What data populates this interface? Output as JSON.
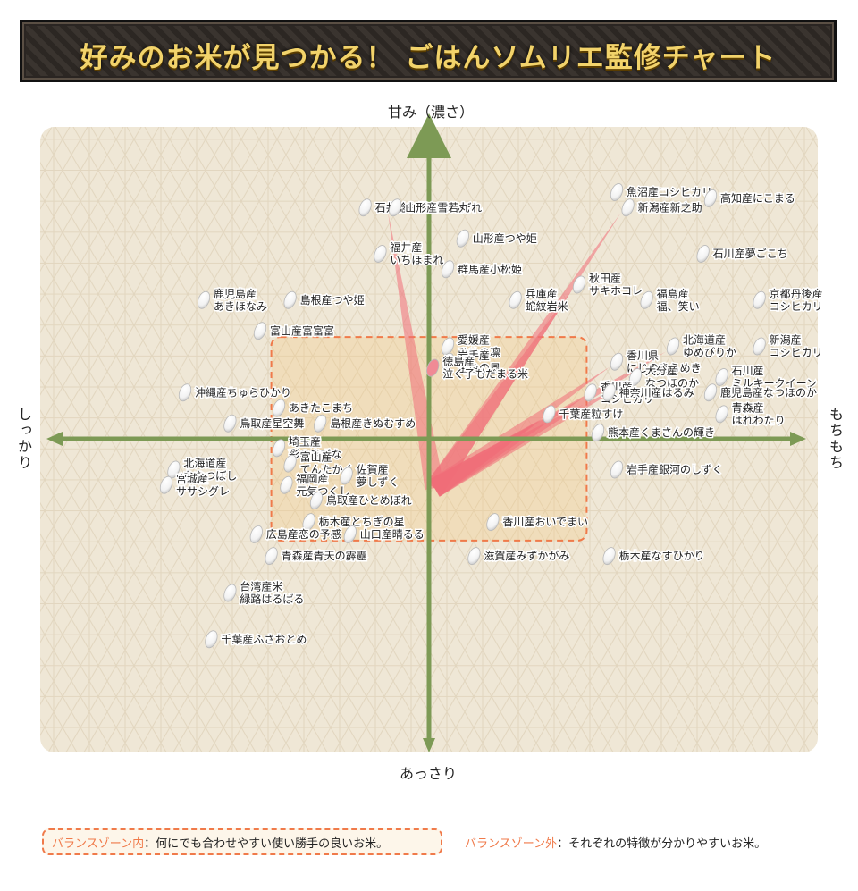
{
  "title": "好みのお米が見つかる！ ごはんソムリエ監修チャート",
  "axes": {
    "top": "甘み（濃さ）",
    "bottom": "あっさり",
    "left": "しっかり",
    "right": "もちもち"
  },
  "legend": {
    "inside_label": "バランスゾーン内",
    "inside_text": "：何にでも合わせやすい使い勝手の良いお米。",
    "outside_label": "バランスゾーン外",
    "outside_text": "：それぞれの特徴が分かりやすいお米。"
  },
  "chart_data": {
    "type": "scatter",
    "title": "好みのお米が見つかる！ ごはんソムリエ監修チャート",
    "x_axis": {
      "negative": "しっかり",
      "positive": "もちもち",
      "xlim": [
        -10,
        10
      ]
    },
    "y_axis": {
      "negative": "あっさり",
      "positive": "甘み（濃さ）",
      "ylim": [
        -10,
        10
      ]
    },
    "balance_zone": {
      "x": [
        -4.2,
        4.2
      ],
      "y": [
        -3.3,
        3.3
      ]
    },
    "highlight": {
      "name": "徳島産 泣く子もだまる米",
      "x": 0.1,
      "y": 2.3
    },
    "points": [
      {
        "name": "魚沼産コシヒカリ",
        "x": 5.0,
        "y": 8.0
      },
      {
        "name": "新潟産新之助",
        "x": 5.3,
        "y": 7.5
      },
      {
        "name": "高知産にこまる",
        "x": 7.5,
        "y": 7.8
      },
      {
        "name": "石井稔有機ひとめぼれ",
        "x": -1.7,
        "y": 7.5
      },
      {
        "name": "山形産雪若丸",
        "x": -0.9,
        "y": 7.5
      },
      {
        "name": "山形産つや姫",
        "x": 0.9,
        "y": 6.5
      },
      {
        "name": "石川産夢ごこち",
        "x": 7.3,
        "y": 6.0
      },
      {
        "name": "福井産 いちほまれ",
        "x": -1.3,
        "y": 6.0
      },
      {
        "name": "群馬産小松姫",
        "x": 0.5,
        "y": 5.5
      },
      {
        "name": "秋田産 サキホコレ",
        "x": 4.0,
        "y": 5.0
      },
      {
        "name": "鹿児島産 あきほなみ",
        "x": -6.0,
        "y": 4.5
      },
      {
        "name": "島根産つや姫",
        "x": -3.7,
        "y": 4.5
      },
      {
        "name": "兵庫産 蛇紋岩米",
        "x": 2.3,
        "y": 4.5
      },
      {
        "name": "福島産 福、笑い",
        "x": 5.8,
        "y": 4.5
      },
      {
        "name": "京都丹後産 コシヒカリ",
        "x": 8.8,
        "y": 4.5
      },
      {
        "name": "富山産富富富",
        "x": -4.5,
        "y": 3.5
      },
      {
        "name": "愛媛産 ひめの凛",
        "x": 0.5,
        "y": 3.0
      },
      {
        "name": "北海道産 ゆめぴりか",
        "x": 6.5,
        "y": 3.0
      },
      {
        "name": "新潟産 コシヒカリ",
        "x": 8.8,
        "y": 3.0
      },
      {
        "name": "岩手産 金色の風",
        "x": 0.5,
        "y": 2.5
      },
      {
        "name": "香川県 にじのきらめき",
        "x": 5.0,
        "y": 2.5
      },
      {
        "name": "大分産 なつほのか",
        "x": 5.5,
        "y": 2.0
      },
      {
        "name": "石川産 ミルキークイーン",
        "x": 7.8,
        "y": 2.0
      },
      {
        "name": "沖縄産ちゅらひかり",
        "x": -6.5,
        "y": 1.5
      },
      {
        "name": "香川産 コシヒカリ",
        "x": 4.3,
        "y": 1.5
      },
      {
        "name": "神奈川産はるみ",
        "x": 4.8,
        "y": 1.5
      },
      {
        "name": "鹿児島産なつほのか",
        "x": 7.5,
        "y": 1.5
      },
      {
        "name": "あきたこまち",
        "x": -4.0,
        "y": 1.0
      },
      {
        "name": "千葉産粒すけ",
        "x": 3.2,
        "y": 0.8
      },
      {
        "name": "青森産 はれわたり",
        "x": 7.8,
        "y": 0.8
      },
      {
        "name": "鳥取産星空舞",
        "x": -5.3,
        "y": 0.5
      },
      {
        "name": "島根産きぬむすめ",
        "x": -2.9,
        "y": 0.5
      },
      {
        "name": "熊本産くまさんの輝き",
        "x": 4.5,
        "y": 0.2
      },
      {
        "name": "埼玉産 彩のきずな",
        "x": -4.0,
        "y": -0.3
      },
      {
        "name": "富山産 てんたかく",
        "x": -3.7,
        "y": -0.8
      },
      {
        "name": "北海道産 ななつぼし",
        "x": -6.8,
        "y": -1.0
      },
      {
        "name": "岩手産銀河のしずく",
        "x": 5.0,
        "y": -1.0
      },
      {
        "name": "佐賀産 夢しずく",
        "x": -2.2,
        "y": -1.2
      },
      {
        "name": "福岡産 元気つくし",
        "x": -3.8,
        "y": -1.5
      },
      {
        "name": "宮城産 ササシグレ",
        "x": -7.0,
        "y": -1.5
      },
      {
        "name": "鳥取産ひとめぼれ",
        "x": -3.0,
        "y": -2.0
      },
      {
        "name": "栃木産とちぎの星",
        "x": -3.2,
        "y": -2.7
      },
      {
        "name": "香川産おいでまい",
        "x": 1.7,
        "y": -2.7
      },
      {
        "name": "山口産晴るる",
        "x": -2.1,
        "y": -3.1
      },
      {
        "name": "広島産恋の予感",
        "x": -4.6,
        "y": -3.1
      },
      {
        "name": "青森産青天の霹靂",
        "x": -4.2,
        "y": -3.8
      },
      {
        "name": "滋賀産みずかがみ",
        "x": 1.2,
        "y": -3.8
      },
      {
        "name": "栃木産なすひかり",
        "x": 4.8,
        "y": -3.8
      },
      {
        "name": "台湾産米 緑路はるばる",
        "x": -5.3,
        "y": -5.0
      },
      {
        "name": "千葉産ふさおとめ",
        "x": -5.8,
        "y": -6.5
      }
    ]
  }
}
